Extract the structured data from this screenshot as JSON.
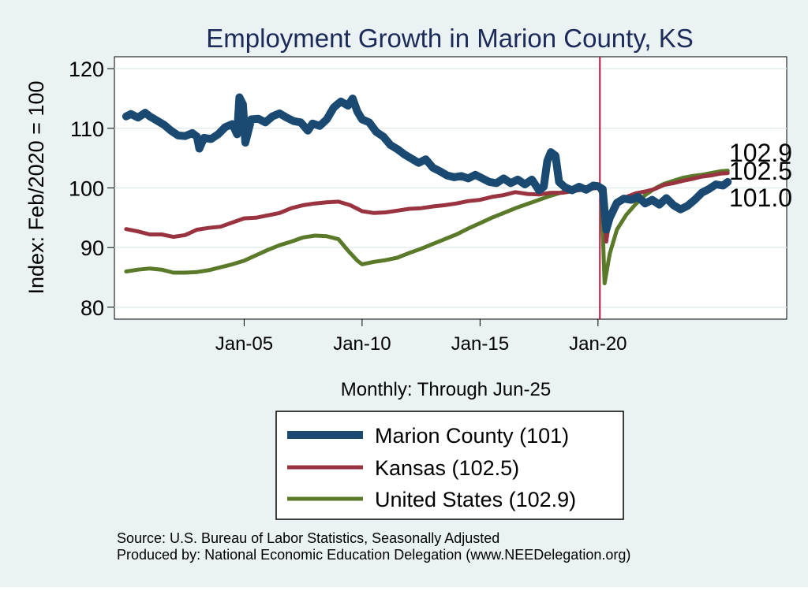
{
  "chart_data": {
    "type": "line",
    "title": "Employment Growth in Marion  County, KS",
    "xlabel": "Monthly: Through Jun-25",
    "ylabel": "Index: Feb/2020 = 100",
    "xlim": [
      1999.5,
      2028.0
    ],
    "ylim": [
      78.0,
      122.0
    ],
    "x_ticks": [
      {
        "value": 2005.0,
        "label": "Jan-05"
      },
      {
        "value": 2010.0,
        "label": "Jan-10"
      },
      {
        "value": 2015.0,
        "label": "Jan-15"
      },
      {
        "value": 2020.0,
        "label": "Jan-20"
      }
    ],
    "y_ticks": [
      80,
      90,
      100,
      110,
      120
    ],
    "grid": true,
    "reference_line": {
      "x": 2020.08,
      "color": "#c0143c"
    },
    "end_labels": [
      "102.9",
      "102.5",
      "101.0"
    ],
    "series": [
      {
        "name": "Marion  County",
        "legend": "Marion  County (101)",
        "color": "#1a4a72",
        "points": [
          [
            2000.0,
            112.0
          ],
          [
            2000.2,
            112.4
          ],
          [
            2000.5,
            111.8
          ],
          [
            2000.8,
            112.6
          ],
          [
            2001.0,
            112.0
          ],
          [
            2001.3,
            111.3
          ],
          [
            2001.6,
            110.6
          ],
          [
            2001.9,
            109.6
          ],
          [
            2002.2,
            108.8
          ],
          [
            2002.5,
            108.7
          ],
          [
            2002.8,
            109.2
          ],
          [
            2003.0,
            108.6
          ],
          [
            2003.1,
            106.6
          ],
          [
            2003.3,
            108.4
          ],
          [
            2003.6,
            108.2
          ],
          [
            2003.9,
            109.0
          ],
          [
            2004.2,
            110.2
          ],
          [
            2004.5,
            110.7
          ],
          [
            2004.7,
            109.0
          ],
          [
            2004.8,
            115.2
          ],
          [
            2004.95,
            114.0
          ],
          [
            2005.05,
            107.6
          ],
          [
            2005.3,
            111.5
          ],
          [
            2005.6,
            111.6
          ],
          [
            2005.9,
            111.0
          ],
          [
            2006.2,
            112.0
          ],
          [
            2006.5,
            112.5
          ],
          [
            2006.8,
            111.8
          ],
          [
            2007.1,
            111.2
          ],
          [
            2007.4,
            111.0
          ],
          [
            2007.7,
            109.6
          ],
          [
            2007.9,
            110.8
          ],
          [
            2008.2,
            110.4
          ],
          [
            2008.5,
            111.5
          ],
          [
            2008.8,
            113.5
          ],
          [
            2009.1,
            114.5
          ],
          [
            2009.4,
            113.8
          ],
          [
            2009.6,
            115.0
          ],
          [
            2009.8,
            112.8
          ],
          [
            2010.0,
            111.5
          ],
          [
            2010.3,
            111.0
          ],
          [
            2010.6,
            109.4
          ],
          [
            2010.9,
            108.6
          ],
          [
            2011.2,
            107.2
          ],
          [
            2011.5,
            106.5
          ],
          [
            2011.8,
            105.6
          ],
          [
            2012.1,
            104.9
          ],
          [
            2012.4,
            104.2
          ],
          [
            2012.7,
            104.8
          ],
          [
            2013.0,
            103.4
          ],
          [
            2013.3,
            102.8
          ],
          [
            2013.6,
            102.1
          ],
          [
            2013.9,
            101.8
          ],
          [
            2014.2,
            102.0
          ],
          [
            2014.5,
            101.6
          ],
          [
            2014.8,
            102.2
          ],
          [
            2015.1,
            101.6
          ],
          [
            2015.4,
            101.0
          ],
          [
            2015.7,
            100.8
          ],
          [
            2016.0,
            101.6
          ],
          [
            2016.3,
            100.8
          ],
          [
            2016.6,
            101.4
          ],
          [
            2016.9,
            100.6
          ],
          [
            2017.2,
            101.4
          ],
          [
            2017.5,
            99.6
          ],
          [
            2017.7,
            100.2
          ],
          [
            2017.85,
            104.5
          ],
          [
            2018.0,
            106.0
          ],
          [
            2018.2,
            105.4
          ],
          [
            2018.35,
            101.0
          ],
          [
            2018.6,
            100.1
          ],
          [
            2018.9,
            99.6
          ],
          [
            2019.2,
            100.2
          ],
          [
            2019.5,
            99.7
          ],
          [
            2019.8,
            100.4
          ],
          [
            2020.0,
            100.3
          ],
          [
            2020.2,
            99.8
          ],
          [
            2020.35,
            93.0
          ],
          [
            2020.5,
            95.0
          ],
          [
            2020.8,
            97.5
          ],
          [
            2021.1,
            98.2
          ],
          [
            2021.4,
            98.0
          ],
          [
            2021.7,
            98.5
          ],
          [
            2022.0,
            97.4
          ],
          [
            2022.3,
            98.0
          ],
          [
            2022.6,
            97.2
          ],
          [
            2022.9,
            98.3
          ],
          [
            2023.2,
            97.1
          ],
          [
            2023.5,
            96.4
          ],
          [
            2023.8,
            97.0
          ],
          [
            2024.1,
            98.0
          ],
          [
            2024.4,
            99.2
          ],
          [
            2024.7,
            99.8
          ],
          [
            2025.0,
            100.6
          ],
          [
            2025.3,
            100.4
          ],
          [
            2025.5,
            101.0
          ]
        ]
      },
      {
        "name": "Kansas",
        "legend": "Kansas (102.5)",
        "color": "#9a3340",
        "points": [
          [
            2000.0,
            93.1
          ],
          [
            2000.5,
            92.7
          ],
          [
            2001.0,
            92.2
          ],
          [
            2001.5,
            92.2
          ],
          [
            2002.0,
            91.8
          ],
          [
            2002.5,
            92.1
          ],
          [
            2003.0,
            93.0
          ],
          [
            2003.5,
            93.3
          ],
          [
            2004.0,
            93.5
          ],
          [
            2004.5,
            94.2
          ],
          [
            2005.0,
            94.9
          ],
          [
            2005.5,
            95.0
          ],
          [
            2006.0,
            95.4
          ],
          [
            2006.5,
            95.8
          ],
          [
            2007.0,
            96.6
          ],
          [
            2007.5,
            97.1
          ],
          [
            2008.0,
            97.4
          ],
          [
            2008.5,
            97.6
          ],
          [
            2009.0,
            97.7
          ],
          [
            2009.5,
            97.1
          ],
          [
            2010.0,
            96.1
          ],
          [
            2010.5,
            95.8
          ],
          [
            2011.0,
            95.9
          ],
          [
            2011.5,
            96.2
          ],
          [
            2012.0,
            96.5
          ],
          [
            2012.5,
            96.6
          ],
          [
            2013.0,
            96.9
          ],
          [
            2013.5,
            97.1
          ],
          [
            2014.0,
            97.4
          ],
          [
            2014.5,
            97.8
          ],
          [
            2015.0,
            98.0
          ],
          [
            2015.5,
            98.5
          ],
          [
            2016.0,
            98.8
          ],
          [
            2016.5,
            99.3
          ],
          [
            2017.0,
            99.0
          ],
          [
            2017.5,
            98.9
          ],
          [
            2018.0,
            99.2
          ],
          [
            2018.5,
            99.2
          ],
          [
            2019.0,
            99.5
          ],
          [
            2019.5,
            99.8
          ],
          [
            2020.0,
            100.0
          ],
          [
            2020.2,
            99.2
          ],
          [
            2020.35,
            91.0
          ],
          [
            2020.5,
            95.0
          ],
          [
            2020.8,
            97.5
          ],
          [
            2021.2,
            98.5
          ],
          [
            2021.6,
            99.1
          ],
          [
            2022.0,
            99.4
          ],
          [
            2022.4,
            99.8
          ],
          [
            2022.8,
            100.5
          ],
          [
            2023.2,
            100.8
          ],
          [
            2023.6,
            101.2
          ],
          [
            2024.0,
            101.5
          ],
          [
            2024.4,
            101.9
          ],
          [
            2024.8,
            102.1
          ],
          [
            2025.2,
            102.4
          ],
          [
            2025.5,
            102.5
          ]
        ]
      },
      {
        "name": "United States",
        "legend": "United States (102.9)",
        "color": "#5a7a2a",
        "points": [
          [
            2000.0,
            86.0
          ],
          [
            2000.5,
            86.3
          ],
          [
            2001.0,
            86.5
          ],
          [
            2001.5,
            86.3
          ],
          [
            2002.0,
            85.8
          ],
          [
            2002.5,
            85.8
          ],
          [
            2003.0,
            85.9
          ],
          [
            2003.5,
            86.2
          ],
          [
            2004.0,
            86.7
          ],
          [
            2004.5,
            87.2
          ],
          [
            2005.0,
            87.8
          ],
          [
            2005.5,
            88.7
          ],
          [
            2006.0,
            89.6
          ],
          [
            2006.5,
            90.4
          ],
          [
            2007.0,
            91.0
          ],
          [
            2007.5,
            91.7
          ],
          [
            2008.0,
            92.0
          ],
          [
            2008.5,
            91.9
          ],
          [
            2009.0,
            91.4
          ],
          [
            2009.4,
            89.5
          ],
          [
            2009.8,
            87.8
          ],
          [
            2010.0,
            87.2
          ],
          [
            2010.5,
            87.6
          ],
          [
            2011.0,
            87.9
          ],
          [
            2011.5,
            88.3
          ],
          [
            2012.0,
            89.1
          ],
          [
            2012.5,
            89.8
          ],
          [
            2013.0,
            90.6
          ],
          [
            2013.5,
            91.4
          ],
          [
            2014.0,
            92.2
          ],
          [
            2014.5,
            93.2
          ],
          [
            2015.0,
            94.1
          ],
          [
            2015.5,
            95.0
          ],
          [
            2016.0,
            95.8
          ],
          [
            2016.5,
            96.6
          ],
          [
            2017.0,
            97.3
          ],
          [
            2017.5,
            98.0
          ],
          [
            2018.0,
            98.7
          ],
          [
            2018.5,
            99.3
          ],
          [
            2019.0,
            99.7
          ],
          [
            2019.5,
            100.0
          ],
          [
            2020.0,
            100.2
          ],
          [
            2020.15,
            99.0
          ],
          [
            2020.28,
            84.0
          ],
          [
            2020.5,
            89.0
          ],
          [
            2020.8,
            93.0
          ],
          [
            2021.2,
            95.5
          ],
          [
            2021.6,
            97.3
          ],
          [
            2022.0,
            98.8
          ],
          [
            2022.4,
            99.9
          ],
          [
            2022.8,
            100.7
          ],
          [
            2023.2,
            101.2
          ],
          [
            2023.6,
            101.7
          ],
          [
            2024.0,
            102.0
          ],
          [
            2024.4,
            102.2
          ],
          [
            2024.8,
            102.5
          ],
          [
            2025.2,
            102.8
          ],
          [
            2025.5,
            102.9
          ]
        ]
      }
    ],
    "source_note": "Source: U.S. Bureau of Labor Statistics, Seasonally Adjusted",
    "produced_note": "Produced by: National Economic Education Delegation (www.NEEDelegation.org)"
  }
}
